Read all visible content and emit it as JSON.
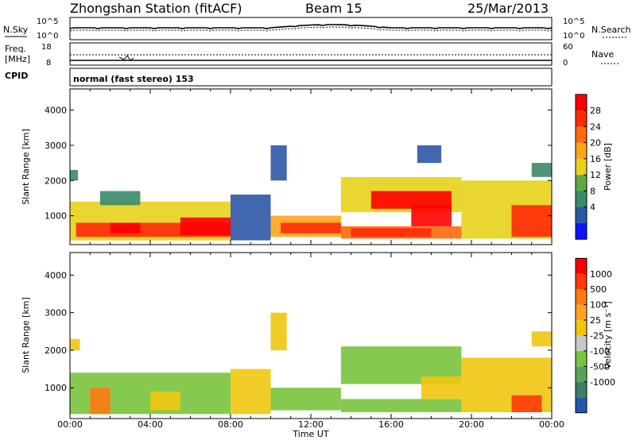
{
  "header": {
    "station": "Zhongshan Station (fitACF)",
    "beam": "Beam 15",
    "date": "25/Mar/2013"
  },
  "top_panels": {
    "nsky_label": "N.Sky",
    "nsky_ticks": [
      "10^5",
      "10^0"
    ],
    "nsearch_label": "N.Search",
    "nsearch_ticks": [
      "10^5",
      "10^0"
    ],
    "freq_label": "Freq.",
    "freq_unit": "[MHz]",
    "freq_ticks": [
      "18",
      "8"
    ],
    "nave_label": "Nave",
    "nave_ticks": [
      "60",
      "0"
    ],
    "cpid_label": "CPID",
    "cpid_value": "normal (fast stereo) 153"
  },
  "colors": {
    "power_scale": [
      "#0a14ff",
      "#2c56a6",
      "#3a8a68",
      "#5fa84a",
      "#e8d21a",
      "#ffa51a",
      "#ff6a0a",
      "#ff2a0a",
      "#ff0000"
    ],
    "velocity_scale": [
      "#2456b0",
      "#3f7f6a",
      "#58a35c",
      "#78c43c",
      "#c8c8c8",
      "#f0c60e",
      "#ffa31c",
      "#ff7a10",
      "#ff3a0a",
      "#ff0000"
    ]
  },
  "chart_data": [
    {
      "type": "heatmap",
      "panel": "power",
      "ylabel": "Slant Range [km]",
      "yticks": [
        "4000",
        "3000",
        "2000",
        "1000"
      ],
      "ylim": [
        180,
        4600
      ],
      "xlim": [
        0,
        24
      ],
      "xticks": [
        "00:00",
        "04:00",
        "08:00",
        "12:00",
        "16:00",
        "20:00",
        "00:00"
      ],
      "colorbar_label": "Power [dB]",
      "colorbar_ticks": [
        "28",
        "24",
        "20",
        "16",
        "12",
        "8",
        "4"
      ],
      "colorbar_range": [
        0,
        30
      ],
      "blocks": [
        {
          "t0": 0.0,
          "t1": 8.0,
          "r0": 300,
          "r1": 1400,
          "v": 16
        },
        {
          "t0": 0.3,
          "t1": 8.0,
          "r0": 400,
          "r1": 800,
          "v": 26
        },
        {
          "t0": 2.0,
          "t1": 3.5,
          "r0": 500,
          "r1": 800,
          "v": 28
        },
        {
          "t0": 5.5,
          "t1": 8.0,
          "r0": 450,
          "r1": 950,
          "v": 27
        },
        {
          "t0": 0.0,
          "t1": 0.4,
          "r0": 2000,
          "r1": 2300,
          "v": 8
        },
        {
          "t0": 1.5,
          "t1": 3.5,
          "r0": 1300,
          "r1": 1700,
          "v": 8
        },
        {
          "t0": 8.0,
          "t1": 10.0,
          "r0": 300,
          "r1": 1600,
          "v": 6
        },
        {
          "t0": 10.0,
          "t1": 13.5,
          "r0": 400,
          "r1": 1000,
          "v": 18
        },
        {
          "t0": 10.5,
          "t1": 13.5,
          "r0": 500,
          "r1": 800,
          "v": 24
        },
        {
          "t0": 13.5,
          "t1": 19.5,
          "r0": 350,
          "r1": 700,
          "v": 20
        },
        {
          "t0": 14.0,
          "t1": 18.0,
          "r0": 400,
          "r1": 650,
          "v": 26
        },
        {
          "t0": 13.5,
          "t1": 19.5,
          "r0": 1100,
          "r1": 2100,
          "v": 14
        },
        {
          "t0": 15.0,
          "t1": 19.0,
          "r0": 1200,
          "r1": 1700,
          "v": 27
        },
        {
          "t0": 17.0,
          "t1": 19.0,
          "r0": 700,
          "r1": 1300,
          "v": 28
        },
        {
          "t0": 10.0,
          "t1": 10.8,
          "r0": 2000,
          "r1": 3000,
          "v": 6
        },
        {
          "t0": 17.3,
          "t1": 18.5,
          "r0": 2500,
          "r1": 3000,
          "v": 6
        },
        {
          "t0": 19.5,
          "t1": 24.0,
          "r0": 350,
          "r1": 2000,
          "v": 14
        },
        {
          "t0": 22.0,
          "t1": 24.0,
          "r0": 400,
          "r1": 1300,
          "v": 24
        },
        {
          "t0": 23.0,
          "t1": 24.0,
          "r0": 2100,
          "r1": 2500,
          "v": 7
        }
      ]
    },
    {
      "type": "heatmap",
      "panel": "velocity",
      "ylabel": "Slant Range [km]",
      "yticks": [
        "4000",
        "3000",
        "2000",
        "1000"
      ],
      "ylim": [
        180,
        4600
      ],
      "xlim": [
        0,
        24
      ],
      "xticks": [
        "00:00",
        "04:00",
        "08:00",
        "12:00",
        "16:00",
        "20:00",
        "00:00"
      ],
      "xlabel": "Time UT",
      "colorbar_label": "Velocity [m s⁻¹]",
      "colorbar_ticks": [
        "1000",
        "500",
        "100",
        "25",
        "-25",
        "-100",
        "-500",
        "-1000"
      ],
      "colorbar_range": [
        -1200,
        1200
      ],
      "blocks": [
        {
          "t0": 0.0,
          "t1": 8.0,
          "r0": 300,
          "r1": 1400,
          "v": -300
        },
        {
          "t0": 1.0,
          "t1": 2.0,
          "r0": 300,
          "r1": 1000,
          "v": 700
        },
        {
          "t0": 4.0,
          "t1": 5.5,
          "r0": 400,
          "r1": 900,
          "v": 100
        },
        {
          "t0": 0.0,
          "t1": 0.5,
          "r0": 2000,
          "r1": 2300,
          "v": 25
        },
        {
          "t0": 8.0,
          "t1": 10.0,
          "r0": 300,
          "r1": 1500,
          "v": 50
        },
        {
          "t0": 10.0,
          "t1": 13.5,
          "r0": 400,
          "r1": 1000,
          "v": -400
        },
        {
          "t0": 13.5,
          "t1": 19.5,
          "r0": 350,
          "r1": 700,
          "v": -350
        },
        {
          "t0": 13.5,
          "t1": 19.5,
          "r0": 1100,
          "r1": 2100,
          "v": -450
        },
        {
          "t0": 17.5,
          "t1": 19.5,
          "r0": 700,
          "r1": 1300,
          "v": 80
        },
        {
          "t0": 10.0,
          "t1": 10.8,
          "r0": 2000,
          "r1": 3000,
          "v": 20
        },
        {
          "t0": 19.5,
          "t1": 24.0,
          "r0": 350,
          "r1": 1800,
          "v": 120
        },
        {
          "t0": 22.0,
          "t1": 23.5,
          "r0": 350,
          "r1": 800,
          "v": 900
        },
        {
          "t0": 23.0,
          "t1": 24.0,
          "r0": 2100,
          "r1": 2500,
          "v": 25
        }
      ]
    }
  ]
}
